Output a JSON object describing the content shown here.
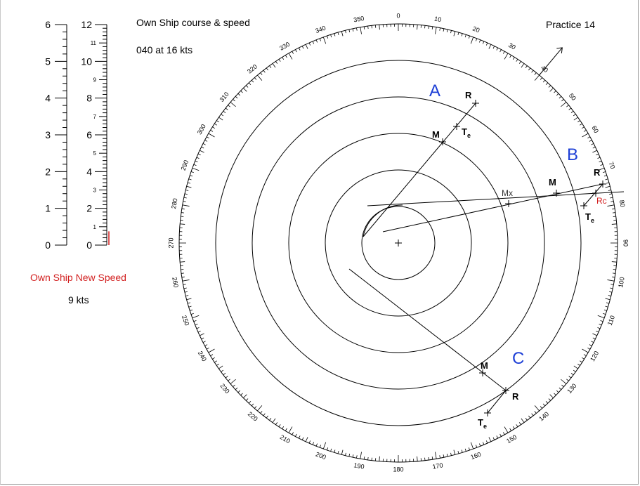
{
  "own_ship": {
    "title": "Own Ship course & speed",
    "value": "040  at 16 kts",
    "course_deg": 40
  },
  "practice_label": "Practice  14",
  "new_speed": {
    "label": "Own Ship New Speed",
    "value": "9 kts",
    "fraction": 0.75
  },
  "colors": {
    "line": "#000000",
    "letters": "#1d3fd6",
    "accent": "#d21f1f"
  },
  "scale": {
    "left_ticks": [
      "0",
      "1",
      "2",
      "3",
      "4",
      "5",
      "6"
    ],
    "right_major": [
      "0",
      "2",
      "4",
      "6",
      "8",
      "10",
      "12"
    ],
    "right_minor": [
      "1",
      "3",
      "5",
      "7",
      "9",
      "11"
    ]
  },
  "radar": {
    "ring_count": 5,
    "compass_step": 10,
    "contacts": [
      {
        "id": "A",
        "labels": {
          "R": "R",
          "M": "M",
          "Te": "Te"
        },
        "bearing_from_center": 29
      },
      {
        "id": "B",
        "labels": {
          "R": "R",
          "M": "M",
          "Te": "Te",
          "Rc": "Rc",
          "Mx": "Mx"
        },
        "bearing_from_center": 75
      },
      {
        "id": "C",
        "labels": {
          "R": "R",
          "M": "M",
          "Te": "Te"
        },
        "bearing_from_center": 144
      }
    ]
  }
}
